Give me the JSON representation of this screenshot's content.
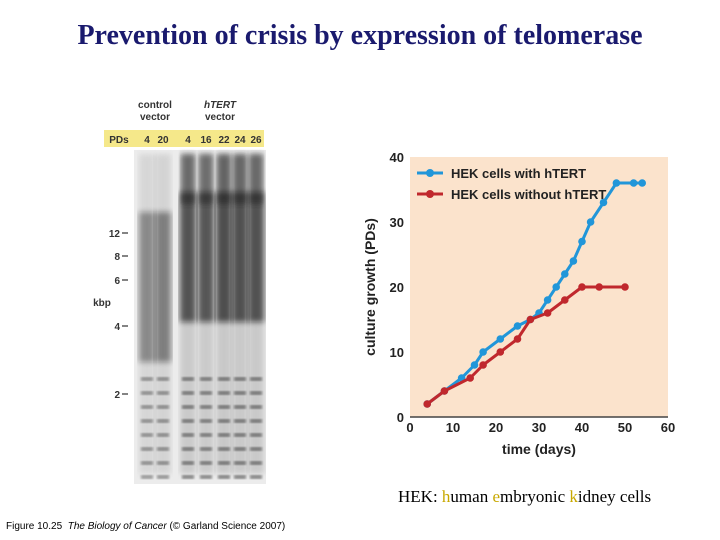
{
  "title": "Prevention of crisis by expression of telomerase",
  "gel": {
    "control_label_1": "control",
    "control_label_2": "vector",
    "htert_label_1": "hTERT",
    "htert_label_2": "vector",
    "pds_label": "PDs",
    "lanes": [
      "4",
      "20",
      "4",
      "16",
      "22",
      "24",
      "26"
    ],
    "markers": [
      "12",
      "8",
      "6",
      "4",
      "2"
    ],
    "unit": "kbp",
    "header_color": "#f5e88a"
  },
  "chart_data": {
    "type": "line",
    "xlabel": "time (days)",
    "ylabel": "culture growth (PDs)",
    "xlim": [
      0,
      60
    ],
    "ylim": [
      0,
      40
    ],
    "xticks": [
      0,
      10,
      20,
      30,
      40,
      50,
      60
    ],
    "yticks": [
      0,
      10,
      20,
      30,
      40
    ],
    "background": "#fbe3cc",
    "legend_position": "top-left",
    "series": [
      {
        "name": "HEK cells with hTERT",
        "color": "#2196d9",
        "x": [
          4,
          8,
          12,
          15,
          17,
          21,
          25,
          28,
          30,
          32,
          34,
          36,
          38,
          40,
          42,
          45,
          48,
          52,
          54
        ],
        "y": [
          2,
          4,
          6,
          8,
          10,
          12,
          14,
          15,
          16,
          18,
          20,
          22,
          24,
          27,
          30,
          33,
          36,
          36,
          36
        ]
      },
      {
        "name": "HEK cells without hTERT",
        "color": "#c0282d",
        "x": [
          4,
          8,
          14,
          17,
          21,
          25,
          28,
          32,
          36,
          40,
          44,
          50
        ],
        "y": [
          2,
          4,
          6,
          8,
          10,
          12,
          15,
          16,
          18,
          20,
          20,
          20
        ]
      }
    ]
  },
  "note": {
    "prefix": "HEK: ",
    "h": "h",
    "w1": "uman ",
    "e": "e",
    "w2": "mbryonic ",
    "k": "k",
    "w3": "idney cells"
  },
  "caption": {
    "fig": "Figure 10.25",
    "book": "The Biology of Cancer",
    "rest": " (© Garland Science 2007)"
  }
}
